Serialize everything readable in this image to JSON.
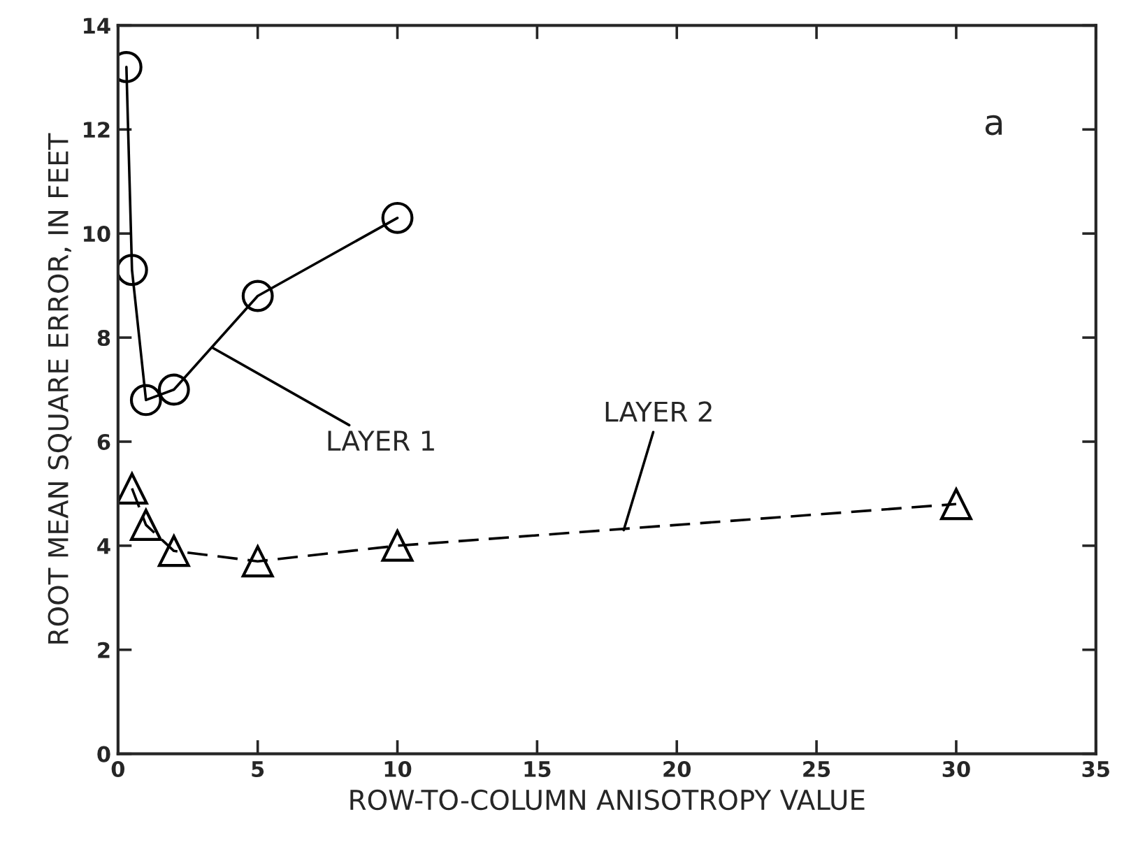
{
  "chart_data": {
    "type": "line",
    "xlabel": "ROW-TO-COLUMN ANISOTROPY VALUE",
    "ylabel": "ROOT MEAN SQUARE ERROR, IN FEET",
    "xlim": [
      0,
      35
    ],
    "xticks": [
      0,
      5,
      10,
      15,
      20,
      25,
      30,
      35
    ],
    "ylim": [
      0,
      14
    ],
    "yticks": [
      0,
      2,
      4,
      6,
      8,
      10,
      12,
      14
    ],
    "grid": false,
    "legend": false,
    "series": [
      {
        "color": "#000000",
        "x": [
          0.3,
          0.5,
          1,
          2,
          5,
          10
        ],
        "values": [
          13.2,
          9.3,
          6.8,
          7.0,
          8.8,
          10.3
        ],
        "marker": "circle",
        "line_style": "solid"
      },
      {
        "color": "#000000",
        "x": [
          0.5,
          1,
          2,
          5,
          10,
          30
        ],
        "values": [
          5.1,
          4.4,
          3.9,
          3.7,
          4.0,
          4.8
        ],
        "marker": "triangle",
        "line_style": "dashed"
      }
    ],
    "annotations": [
      {
        "text": "LAYER 1",
        "x": 3.4,
        "y": 7.8
      },
      {
        "text": "LAYER 2",
        "x": 18.1,
        "y": 4.3
      },
      "a"
    ]
  }
}
